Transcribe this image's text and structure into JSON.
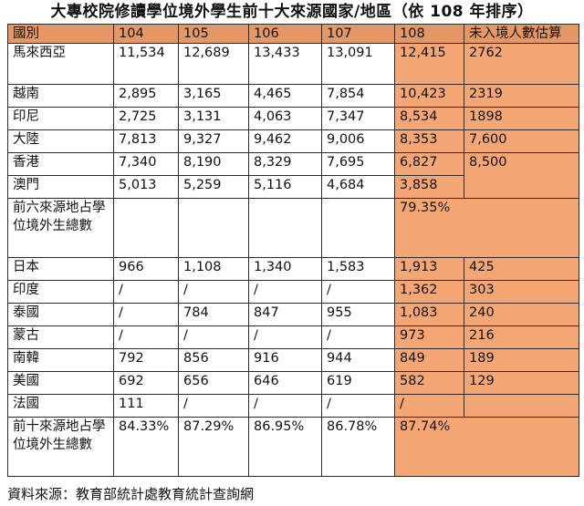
{
  "title": "大專校院修讀學位境外學生前十大來源國家/地區（依 108 年排序）",
  "headers": [
    "國別",
    "104",
    "105",
    "106",
    "107",
    "108",
    "未入境人數估算"
  ],
  "top6_rows": [
    {
      "country": "馬來西亞",
      "y104": "11,534",
      "y105": "12,689",
      "y106": "13,433",
      "y107": "13,091",
      "y108": "12,415",
      "estimate": "2762"
    },
    {
      "country": "越南",
      "y104": "2,895",
      "y105": "3,165",
      "y106": "4,465",
      "y107": "7,854",
      "y108": "10,423",
      "estimate": "2319"
    },
    {
      "country": "印尼",
      "y104": "2,725",
      "y105": "3,131",
      "y106": "4,063",
      "y107": "7,347",
      "y108": "8,534",
      "estimate": "1898"
    },
    {
      "country": "大陸",
      "y104": "7,813",
      "y105": "9,327",
      "y106": "9,462",
      "y107": "9,006",
      "y108": "8,353",
      "estimate": "7,600"
    },
    {
      "country": "香港",
      "y104": "7,340",
      "y105": "8,190",
      "y106": "8,329",
      "y107": "7,695",
      "y108": "6,827"
    },
    {
      "country": "澳門",
      "y104": "5,013",
      "y105": "5,259",
      "y106": "5,116",
      "y107": "4,684",
      "y108": "3,858"
    }
  ],
  "hk_macau_estimate": "8,500",
  "top6_share": {
    "label": "前六來源地占學位境外生總數",
    "percent": "79.35%"
  },
  "top10_rows": [
    {
      "country": "日本",
      "y104": "966",
      "y105": "1,108",
      "y106": "1,340",
      "y107": "1,583",
      "y108": "1,913",
      "estimate": "425"
    },
    {
      "country": "印度",
      "y104": "/",
      "y105": "/",
      "y106": "/",
      "y107": "/",
      "y108": "1,362",
      "estimate": "303"
    },
    {
      "country": "泰國",
      "y104": "/",
      "y105": "784",
      "y106": "847",
      "y107": "955",
      "y108": "1,083",
      "estimate": "240"
    },
    {
      "country": "蒙古",
      "y104": "/",
      "y105": "/",
      "y106": "/",
      "y107": "/",
      "y108": "973",
      "estimate": "216"
    },
    {
      "country": "南韓",
      "y104": "792",
      "y105": "856",
      "y106": "916",
      "y107": "944",
      "y108": "849",
      "estimate": "189"
    },
    {
      "country": "美國",
      "y104": "692",
      "y105": "656",
      "y106": "646",
      "y107": "619",
      "y108": "582",
      "estimate": "129"
    },
    {
      "country": "法國",
      "y104": "111",
      "y105": "/",
      "y106": "/",
      "y107": "/",
      "y108": "/",
      "estimate": ""
    }
  ],
  "top10_share": {
    "label": "前十來源地占學位境外生總數",
    "y104": "84.33%",
    "y105": "87.29%",
    "y106": "86.95%",
    "y107": "86.78%",
    "percent": "87.74%"
  },
  "source": "資料來源：教育部統計處教育統計查詢網"
}
